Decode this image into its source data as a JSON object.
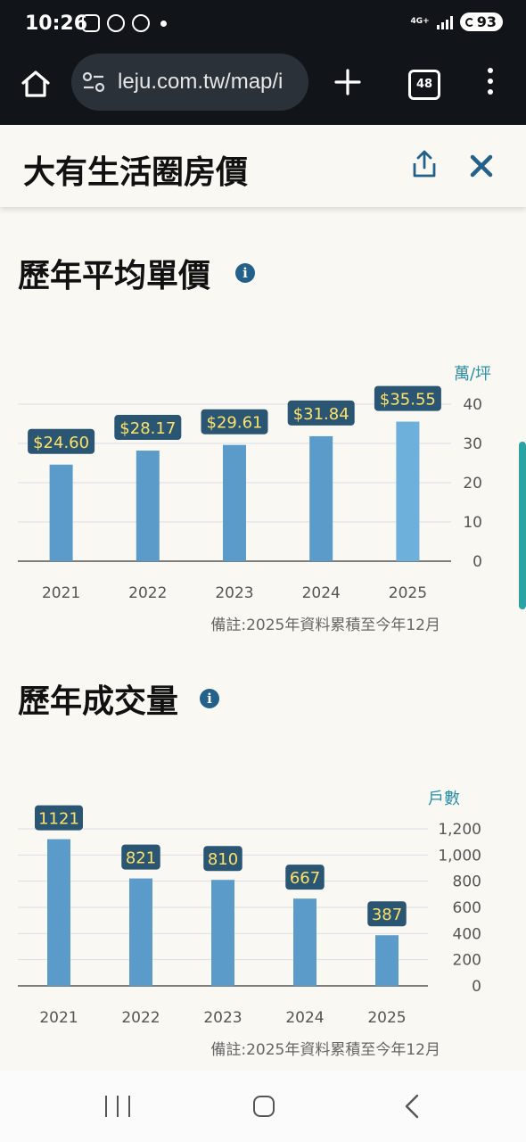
{
  "status_bar": {
    "time": "10:26",
    "network": "4G+",
    "battery": "93"
  },
  "browser": {
    "url": "leju.com.tw/map/i",
    "tab_count": "48"
  },
  "page": {
    "title": "大有生活圈房價"
  },
  "price_section": {
    "title": "歷年平均單價",
    "note": "備註:2025年資料累積至今年12月"
  },
  "volume_section": {
    "title": "歷年成交量",
    "note": "備註:2025年資料累積至今年12月"
  },
  "chart_data": [
    {
      "type": "bar",
      "categories": [
        "2021",
        "2022",
        "2023",
        "2024",
        "2025"
      ],
      "values": [
        24.6,
        28.17,
        29.61,
        31.84,
        35.55
      ],
      "data_labels": [
        "$24.60",
        "$28.17",
        "$29.61",
        "$31.84",
        "$35.55"
      ],
      "ylabel": "萬/坪",
      "ylim": [
        0,
        40
      ],
      "yticks": [
        "0",
        "10",
        "20",
        "30",
        "40"
      ],
      "colors": [
        "#5b9bc9",
        "#5b9bc9",
        "#5b9bc9",
        "#5b9bc9",
        "#6db0dc"
      ],
      "label_bg": "#2a5673",
      "grid": true
    },
    {
      "type": "bar",
      "categories": [
        "2021",
        "2022",
        "2023",
        "2024",
        "2025"
      ],
      "values": [
        1121,
        821,
        810,
        667,
        387
      ],
      "data_labels": [
        "1121",
        "821",
        "810",
        "667",
        "387"
      ],
      "ylabel": "戶數",
      "ylim": [
        0,
        1200
      ],
      "yticks": [
        "0",
        "200",
        "400",
        "600",
        "800",
        "1,000",
        "1,200"
      ],
      "colors": [
        "#5b9bc9",
        "#5b9bc9",
        "#5b9bc9",
        "#5b9bc9",
        "#5b9bc9"
      ],
      "label_bg": "#2a5673",
      "grid": true
    }
  ]
}
